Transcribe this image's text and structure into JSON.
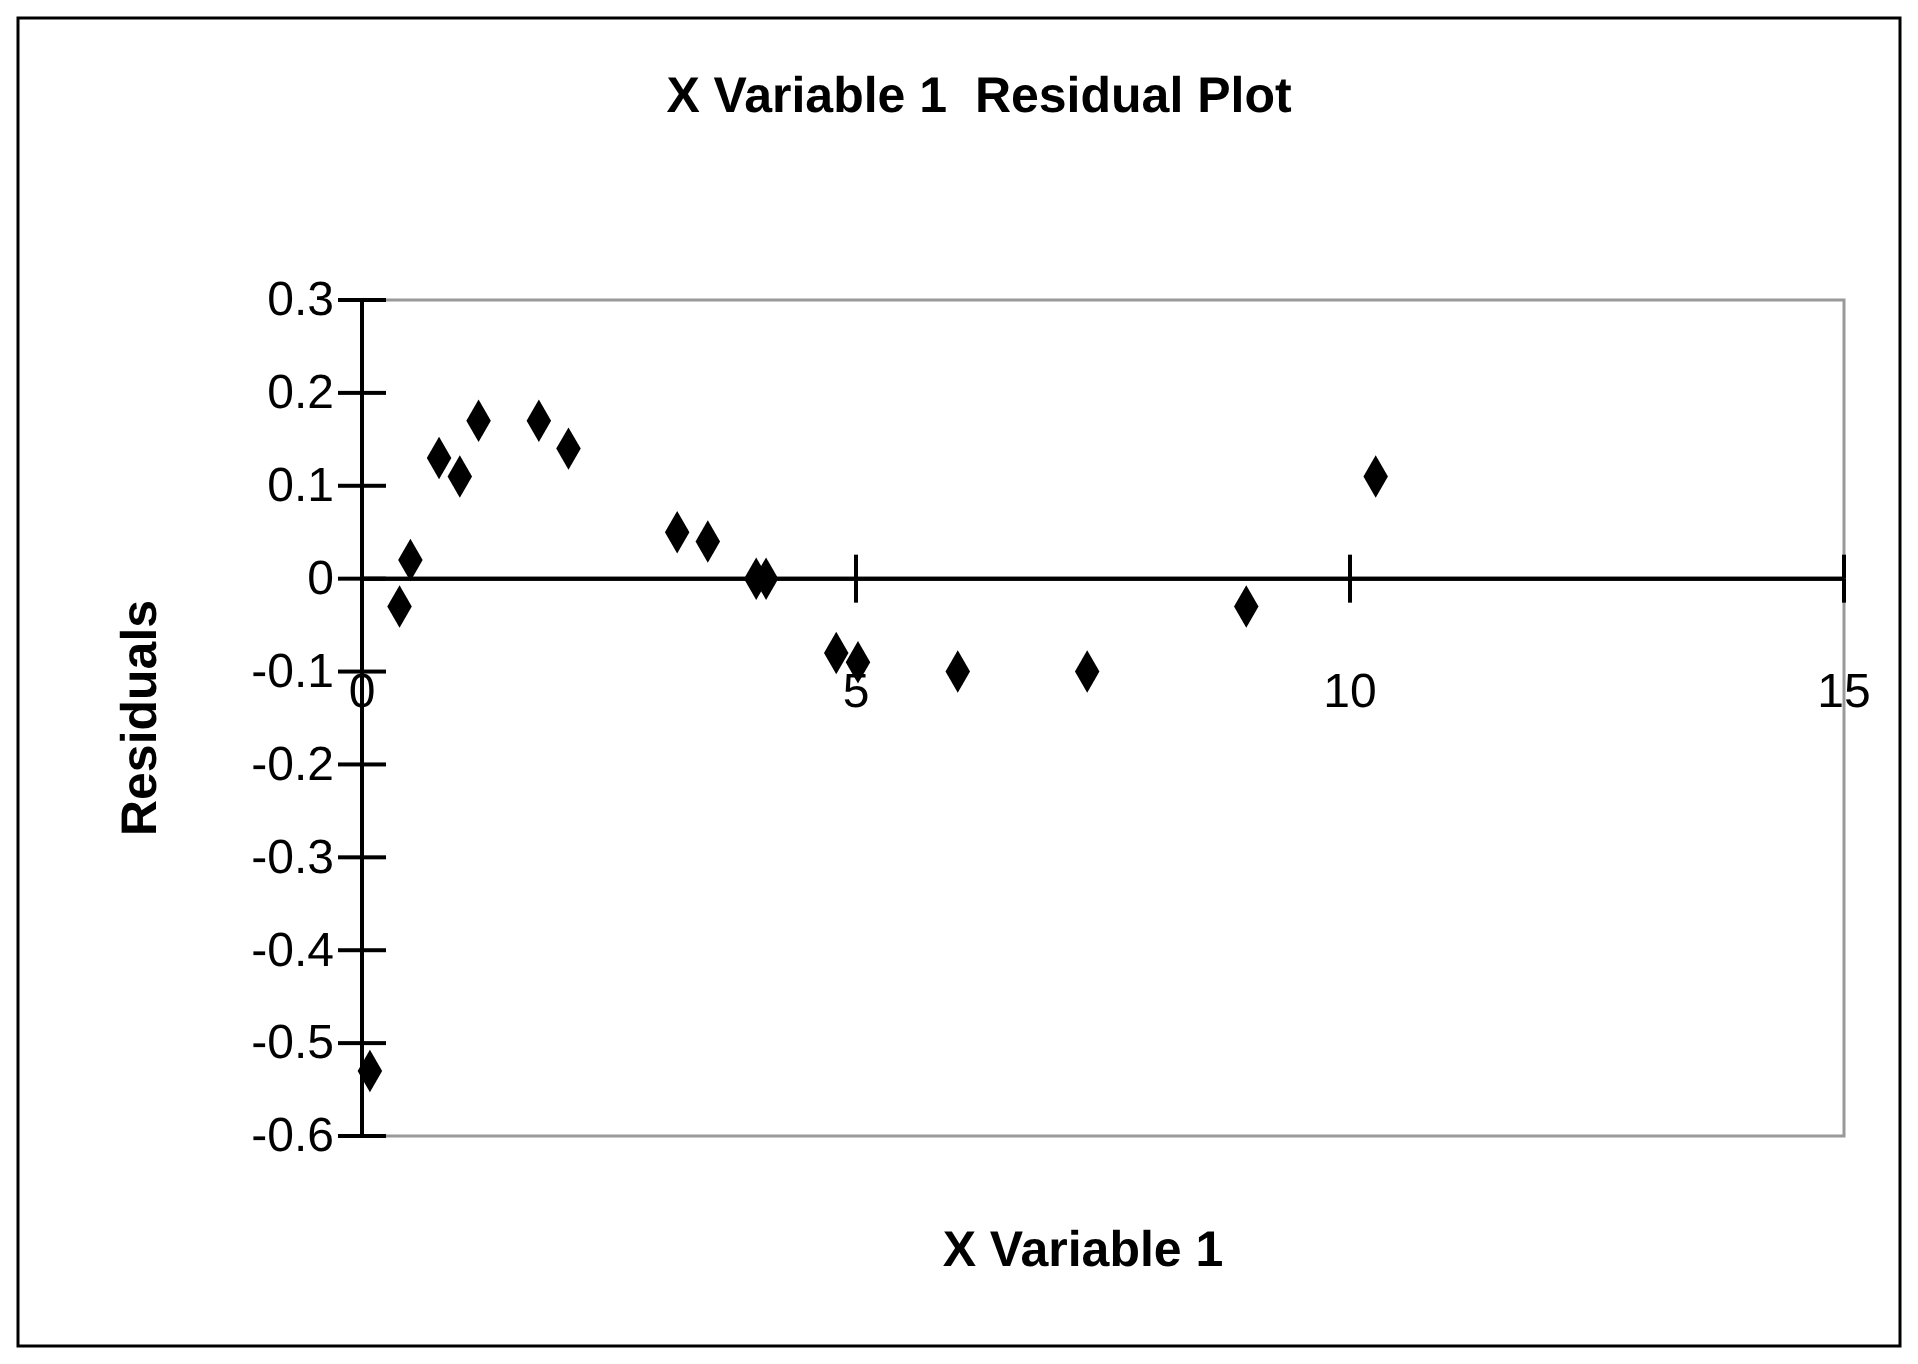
{
  "chart_data": {
    "type": "scatter",
    "title": "X Variable 1  Residual Plot",
    "xlabel": "X Variable 1",
    "ylabel": "Residuals",
    "x": [
      0.08,
      0.38,
      0.49,
      0.78,
      0.99,
      1.18,
      1.79,
      2.09,
      3.19,
      3.5,
      3.99,
      4.09,
      4.8,
      5.02,
      6.03,
      7.34,
      8.95,
      10.26
    ],
    "series": [
      {
        "color": "#000000",
        "values": [
          -0.53,
          -0.03,
          0.02,
          0.13,
          0.11,
          0.17,
          0.17,
          0.14,
          0.05,
          0.04,
          0.0,
          0.0,
          -0.08,
          -0.09,
          -0.1,
          -0.1,
          -0.03,
          0.11
        ]
      }
    ],
    "xlim": [
      0,
      15
    ],
    "xticks": [
      0,
      5,
      10,
      15
    ],
    "ylim": [
      -0.6,
      0.3
    ],
    "yticks": [
      0.3,
      0.2,
      0.1,
      0,
      -0.1,
      -0.2,
      -0.3,
      -0.4,
      -0.5,
      -0.6
    ],
    "marker": "diamond",
    "grid": false
  }
}
